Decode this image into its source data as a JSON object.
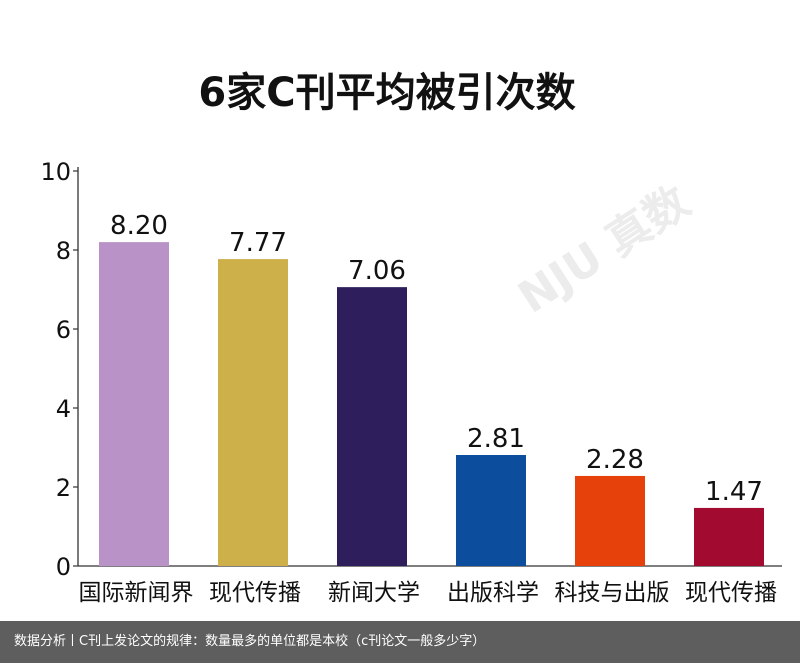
{
  "chart_data": {
    "type": "bar",
    "title": "6家C刊平均被引次数",
    "categories": [
      "国际新闻界",
      "现代传播",
      "新闻大学",
      "出版科学",
      "科技与出版",
      "现代传播"
    ],
    "values": [
      8.2,
      7.77,
      7.06,
      2.81,
      2.28,
      1.47
    ],
    "value_labels": [
      "8.20",
      "7.77",
      "7.06",
      "2.81",
      "2.28",
      "1.47"
    ],
    "colors": [
      "#b993c7",
      "#cdb04a",
      "#2e1f5c",
      "#0c4d9e",
      "#e7410b",
      "#a20a2f"
    ],
    "ylim": [
      0,
      10
    ],
    "yticks": [
      "0",
      "2",
      "4",
      "6",
      "8",
      "10"
    ],
    "grid": false,
    "legend": "none"
  },
  "watermark": "NJU 真数",
  "footer": {
    "text": "数据分析丨C刊上发论文的规律：数量最多的单位都是本校（c刊论文一般多少字）"
  }
}
